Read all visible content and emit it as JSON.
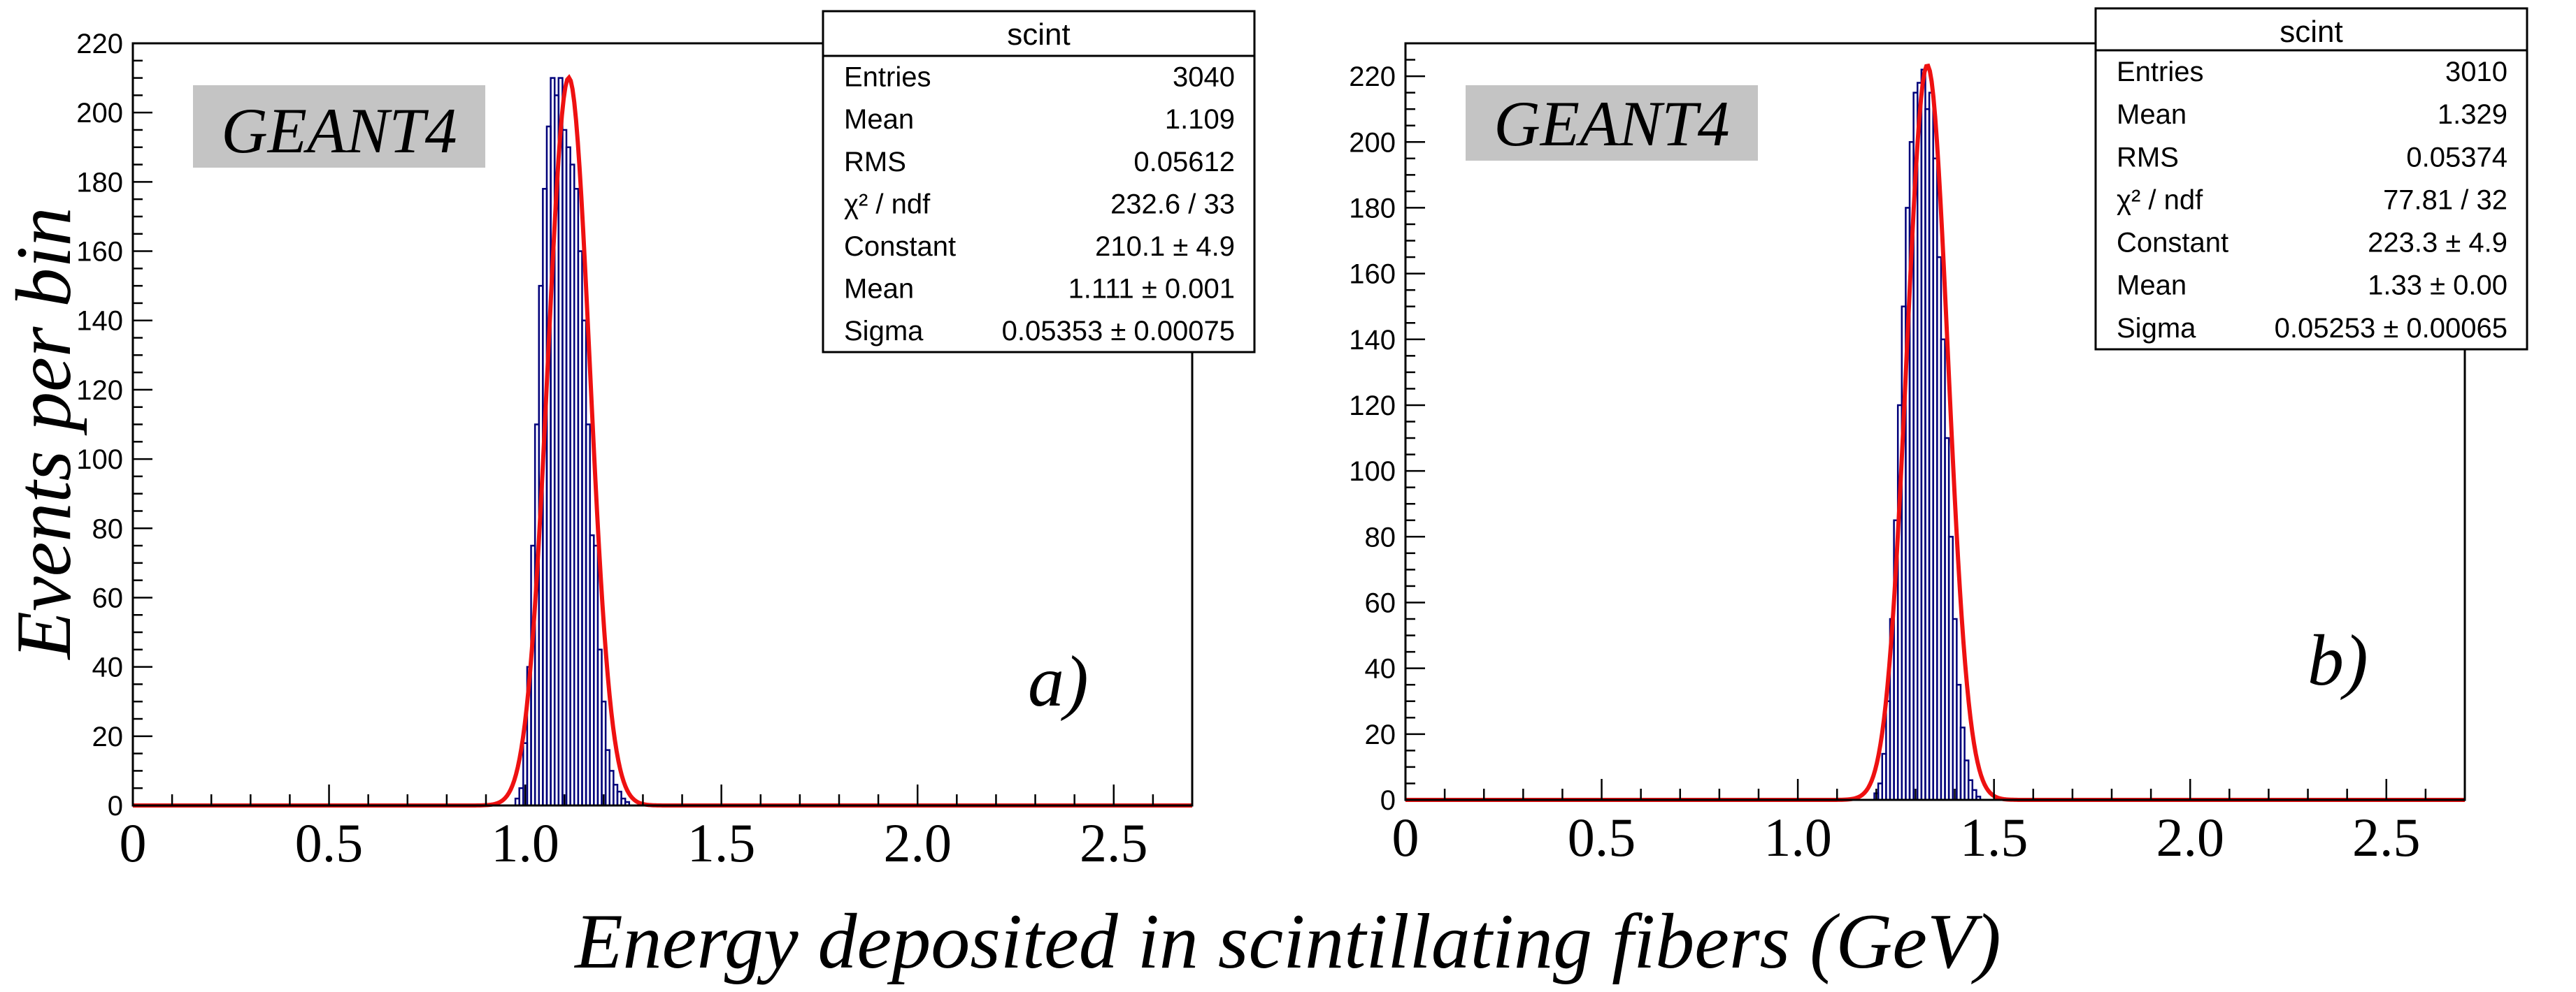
{
  "figure": {
    "ylabel": "Events per bin",
    "xlabel": "Energy deposited in scintillating fibers (GeV)"
  },
  "chart_data": [
    {
      "type": "bar",
      "panel_label": "a)",
      "tag": "GEANT4",
      "xlim": [
        0,
        2.7
      ],
      "ylim": [
        0,
        220
      ],
      "x_ticks": [
        "0",
        "0.5",
        "1.0",
        "1.5",
        "2.0",
        "2.5"
      ],
      "x_tick_values": [
        0,
        0.5,
        1.0,
        1.5,
        2.0,
        2.5
      ],
      "y_ticks": [
        0,
        20,
        40,
        60,
        80,
        100,
        120,
        140,
        160,
        180,
        200,
        220
      ],
      "stats": {
        "title": "scint",
        "rows": [
          {
            "label": "Entries",
            "value": "3040"
          },
          {
            "label": "Mean",
            "value": "1.109"
          },
          {
            "label": "RMS",
            "value": "0.05612"
          },
          {
            "label": "χ² / ndf",
            "value": "232.6 / 33"
          },
          {
            "label": "Constant",
            "value": "210.1 ± 4.9"
          },
          {
            "label": "Mean",
            "value": "1.111 ± 0.001"
          },
          {
            "label": "Sigma",
            "value": "0.05353 ± 0.00075"
          }
        ]
      },
      "fit": {
        "constant": 210.1,
        "mean": 1.111,
        "sigma": 0.05353,
        "color": "#ee1111"
      },
      "histogram": {
        "bin_width": 0.01,
        "color": "#00007a",
        "bins": [
          {
            "x": 0.98,
            "y": 2
          },
          {
            "x": 0.99,
            "y": 5
          },
          {
            "x": 1.0,
            "y": 18
          },
          {
            "x": 1.01,
            "y": 40
          },
          {
            "x": 1.02,
            "y": 75
          },
          {
            "x": 1.03,
            "y": 110
          },
          {
            "x": 1.04,
            "y": 150
          },
          {
            "x": 1.05,
            "y": 178
          },
          {
            "x": 1.06,
            "y": 196
          },
          {
            "x": 1.07,
            "y": 210
          },
          {
            "x": 1.08,
            "y": 205
          },
          {
            "x": 1.09,
            "y": 210
          },
          {
            "x": 1.1,
            "y": 195
          },
          {
            "x": 1.11,
            "y": 190
          },
          {
            "x": 1.12,
            "y": 185
          },
          {
            "x": 1.13,
            "y": 178
          },
          {
            "x": 1.14,
            "y": 160
          },
          {
            "x": 1.15,
            "y": 140
          },
          {
            "x": 1.16,
            "y": 110
          },
          {
            "x": 1.17,
            "y": 78
          },
          {
            "x": 1.18,
            "y": 75
          },
          {
            "x": 1.19,
            "y": 45
          },
          {
            "x": 1.2,
            "y": 30
          },
          {
            "x": 1.21,
            "y": 16
          },
          {
            "x": 1.22,
            "y": 10
          },
          {
            "x": 1.23,
            "y": 6
          },
          {
            "x": 1.24,
            "y": 4
          },
          {
            "x": 1.25,
            "y": 2
          },
          {
            "x": 1.26,
            "y": 1
          }
        ]
      }
    },
    {
      "type": "bar",
      "panel_label": "b)",
      "tag": "GEANT4",
      "xlim": [
        0,
        2.7
      ],
      "ylim": [
        0,
        230
      ],
      "x_ticks": [
        "0",
        "0.5",
        "1.0",
        "1.5",
        "2.0",
        "2.5"
      ],
      "x_tick_values": [
        0,
        0.5,
        1.0,
        1.5,
        2.0,
        2.5
      ],
      "y_ticks": [
        0,
        20,
        40,
        60,
        80,
        100,
        120,
        140,
        160,
        180,
        200,
        220
      ],
      "stats": {
        "title": "scint",
        "rows": [
          {
            "label": "Entries",
            "value": "3010"
          },
          {
            "label": "Mean",
            "value": "1.329"
          },
          {
            "label": "RMS",
            "value": "0.05374"
          },
          {
            "label": "χ² / ndf",
            "value": "77.81 / 32"
          },
          {
            "label": "Constant",
            "value": "223.3 ± 4.9"
          },
          {
            "label": "Mean",
            "value": "1.33 ± 0.00"
          },
          {
            "label": "Sigma",
            "value": "0.05253 ± 0.00065"
          }
        ]
      },
      "fit": {
        "constant": 223.3,
        "mean": 1.33,
        "sigma": 0.05253,
        "color": "#ee1111"
      },
      "histogram": {
        "bin_width": 0.01,
        "color": "#00007a",
        "bins": [
          {
            "x": 1.2,
            "y": 2
          },
          {
            "x": 1.21,
            "y": 5
          },
          {
            "x": 1.22,
            "y": 14
          },
          {
            "x": 1.23,
            "y": 30
          },
          {
            "x": 1.24,
            "y": 55
          },
          {
            "x": 1.25,
            "y": 85
          },
          {
            "x": 1.26,
            "y": 120
          },
          {
            "x": 1.27,
            "y": 150
          },
          {
            "x": 1.28,
            "y": 180
          },
          {
            "x": 1.29,
            "y": 200
          },
          {
            "x": 1.3,
            "y": 215
          },
          {
            "x": 1.31,
            "y": 218
          },
          {
            "x": 1.32,
            "y": 222
          },
          {
            "x": 1.33,
            "y": 210
          },
          {
            "x": 1.34,
            "y": 215
          },
          {
            "x": 1.35,
            "y": 195
          },
          {
            "x": 1.36,
            "y": 165
          },
          {
            "x": 1.37,
            "y": 140
          },
          {
            "x": 1.38,
            "y": 110
          },
          {
            "x": 1.39,
            "y": 80
          },
          {
            "x": 1.4,
            "y": 55
          },
          {
            "x": 1.41,
            "y": 35
          },
          {
            "x": 1.42,
            "y": 22
          },
          {
            "x": 1.43,
            "y": 12
          },
          {
            "x": 1.44,
            "y": 6
          },
          {
            "x": 1.45,
            "y": 3
          },
          {
            "x": 1.46,
            "y": 1
          }
        ]
      }
    }
  ]
}
